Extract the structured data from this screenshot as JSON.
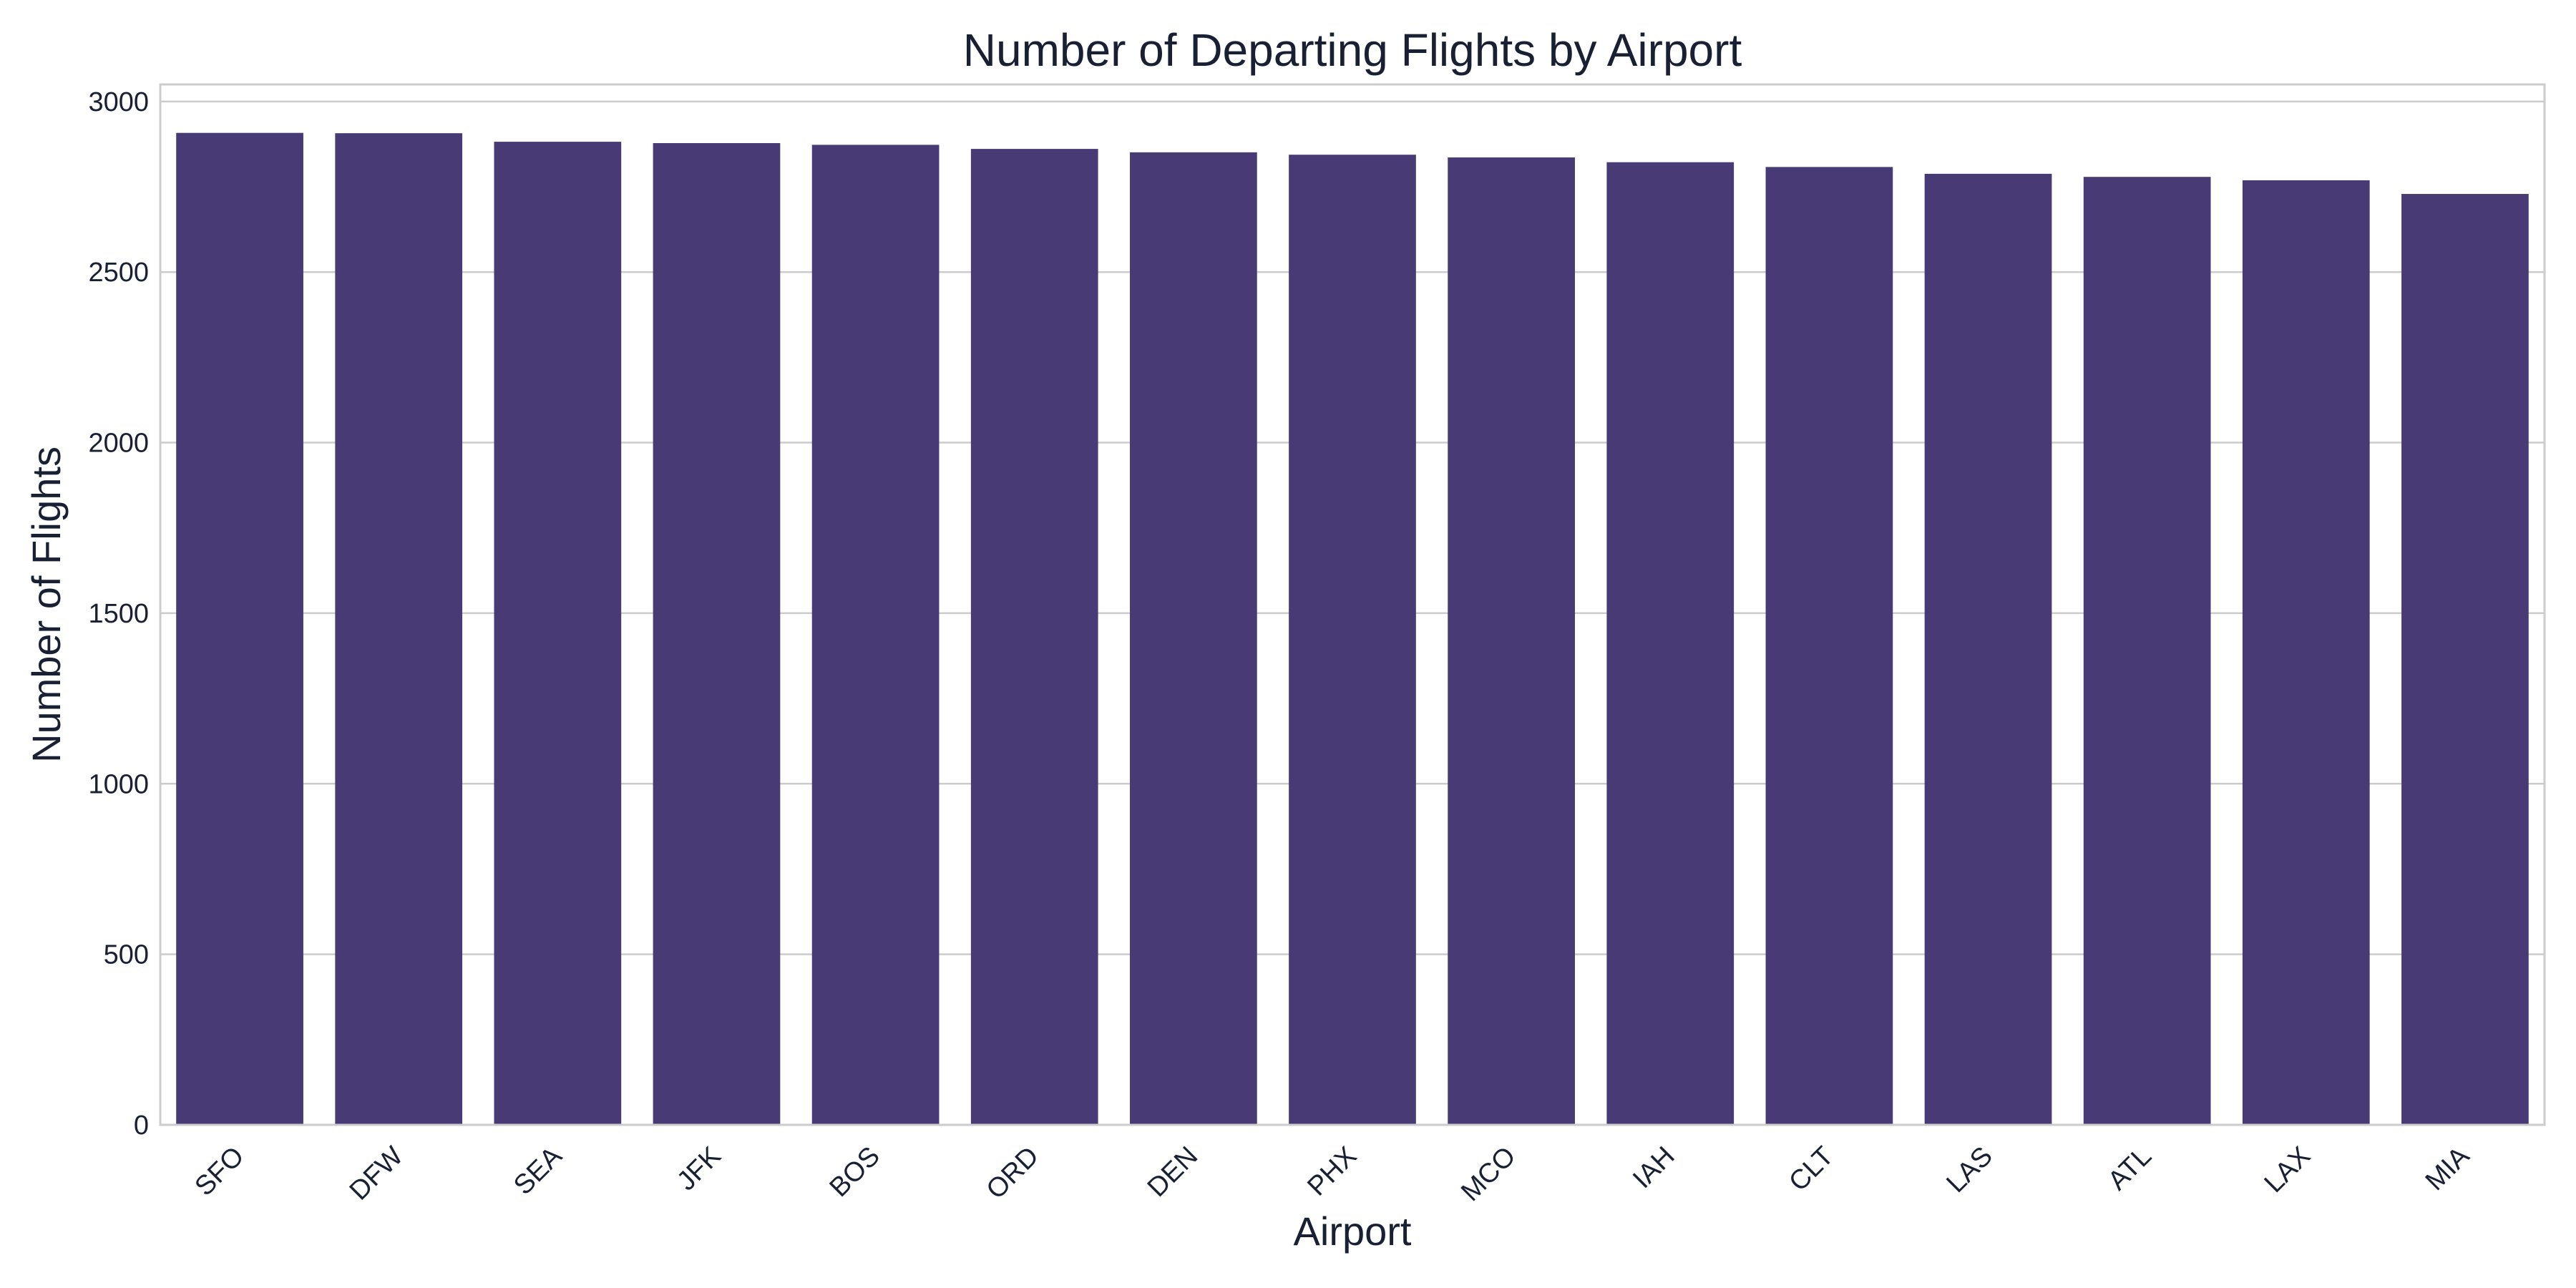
{
  "chart_data": {
    "type": "bar",
    "title": "Number of Departing Flights by Airport",
    "xlabel": "Airport",
    "ylabel": "Number of Flights",
    "categories": [
      "SFO",
      "DFW",
      "SEA",
      "JFK",
      "BOS",
      "ORD",
      "DEN",
      "PHX",
      "MCO",
      "IAH",
      "CLT",
      "LAS",
      "ATL",
      "LAX",
      "MIA"
    ],
    "values": [
      2908,
      2907,
      2882,
      2878,
      2873,
      2861,
      2851,
      2844,
      2836,
      2822,
      2808,
      2788,
      2779,
      2769,
      2729
    ],
    "ylim": [
      0,
      3050
    ],
    "yticks": [
      0,
      500,
      1000,
      1500,
      2000,
      2500,
      3000
    ],
    "ytick_labels": [
      "0",
      "500",
      "1000",
      "1500",
      "2000",
      "2500",
      "3000"
    ],
    "bar_color": "#483a74",
    "grid": true,
    "xtick_rotation": 45
  }
}
